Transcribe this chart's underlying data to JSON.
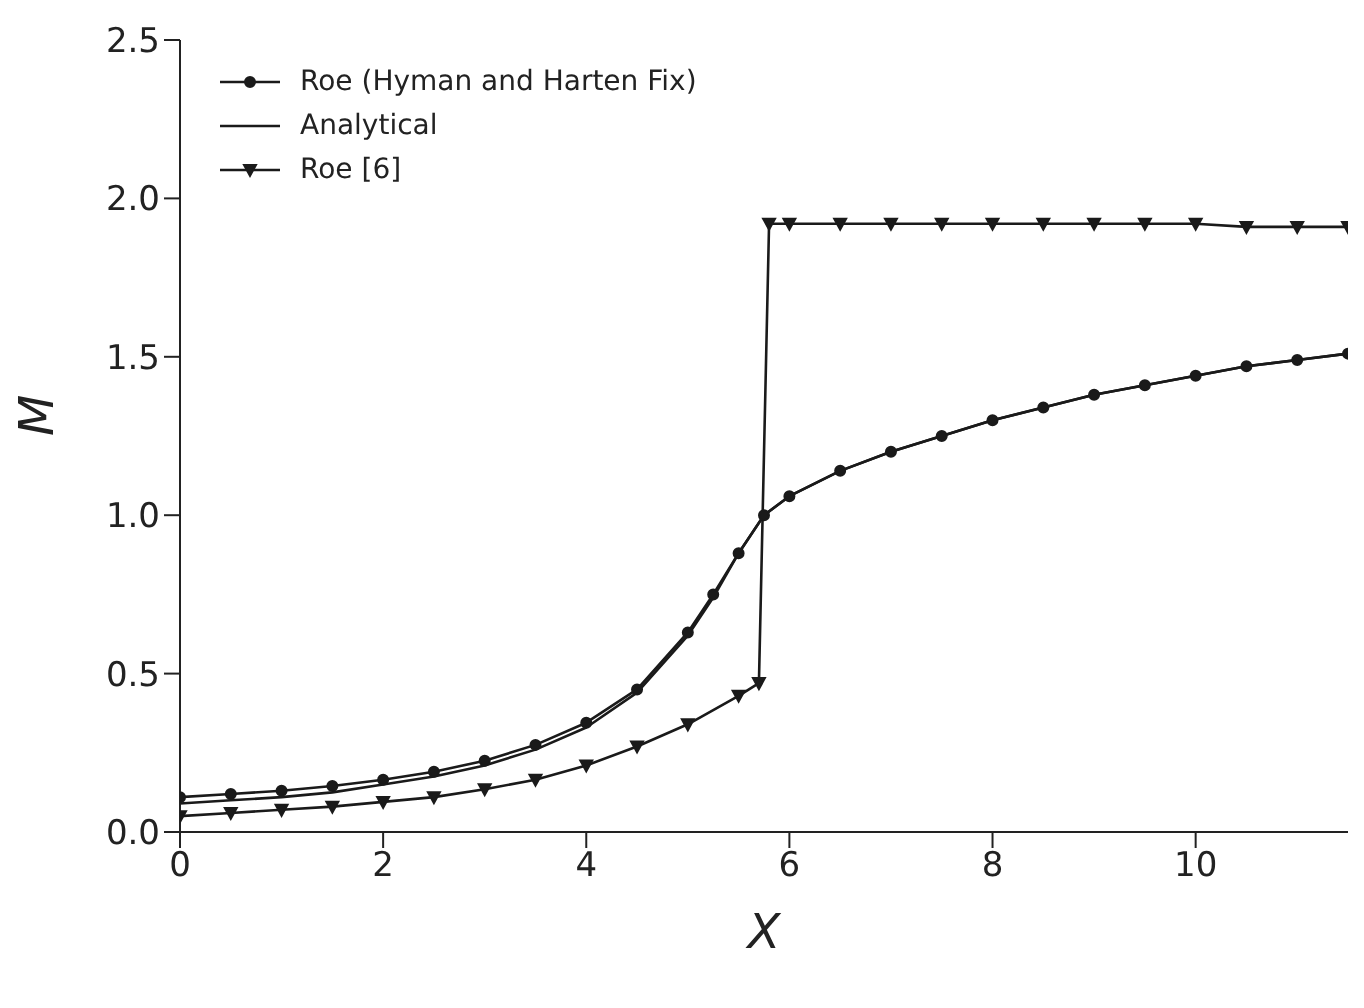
{
  "chart_data": {
    "type": "line",
    "xlabel": "X",
    "ylabel": "M",
    "xlim": [
      0,
      11.5
    ],
    "ylim": [
      0,
      2.5
    ],
    "xticks": [
      0,
      2,
      4,
      6,
      8,
      10
    ],
    "yticks": [
      {
        "value": 0,
        "label": "0.0"
      },
      0.5,
      {
        "value": 1,
        "label": "1.0"
      },
      1.5,
      {
        "value": 2,
        "label": "2.0"
      },
      2.5
    ],
    "grid": false,
    "legend": "top left",
    "line_style": "solid",
    "series": [
      {
        "name": "Roe (Hyman and Harten Fix)",
        "color": "#1a1a1a",
        "marker": "circle",
        "x": [
          0,
          0.5,
          1,
          1.5,
          2,
          2.5,
          3,
          3.5,
          4,
          4.5,
          5,
          5.25,
          5.5,
          5.75,
          6,
          6.5,
          7,
          7.5,
          8,
          8.5,
          9,
          9.5,
          10,
          10.5,
          11,
          11.5
        ],
        "values": [
          0.11,
          0.12,
          0.13,
          0.145,
          0.165,
          0.19,
          0.225,
          0.275,
          0.345,
          0.45,
          0.63,
          0.75,
          0.88,
          1.0,
          1.06,
          1.14,
          1.2,
          1.25,
          1.3,
          1.34,
          1.38,
          1.41,
          1.44,
          1.47,
          1.49,
          1.51
        ]
      },
      {
        "name": "Analytical",
        "color": "#1a1a1a",
        "marker": "none",
        "x": [
          0,
          0.5,
          1,
          1.5,
          2,
          2.5,
          3,
          3.5,
          4,
          4.5,
          5,
          5.25,
          5.5,
          5.75,
          6,
          6.5,
          7,
          7.5,
          8,
          8.5,
          9,
          9.5,
          10,
          10.5,
          11,
          11.5
        ],
        "values": [
          0.09,
          0.1,
          0.11,
          0.125,
          0.15,
          0.175,
          0.21,
          0.26,
          0.33,
          0.44,
          0.62,
          0.74,
          0.88,
          1.0,
          1.06,
          1.14,
          1.2,
          1.25,
          1.3,
          1.34,
          1.38,
          1.41,
          1.44,
          1.47,
          1.49,
          1.51
        ]
      },
      {
        "name": "Roe [6]",
        "color": "#1a1a1a",
        "marker": "triangle",
        "x": [
          0,
          0.5,
          1,
          1.5,
          2,
          2.5,
          3,
          3.5,
          4,
          4.5,
          5,
          5.5,
          5.7,
          5.8,
          6,
          6.5,
          7,
          7.5,
          8,
          8.5,
          9,
          9.5,
          10,
          10.5,
          11,
          11.5
        ],
        "values": [
          0.05,
          0.06,
          0.07,
          0.08,
          0.095,
          0.11,
          0.135,
          0.165,
          0.21,
          0.27,
          0.34,
          0.43,
          0.47,
          1.92,
          1.92,
          1.92,
          1.92,
          1.92,
          1.92,
          1.92,
          1.92,
          1.92,
          1.92,
          1.91,
          1.91,
          1.91
        ]
      }
    ]
  }
}
